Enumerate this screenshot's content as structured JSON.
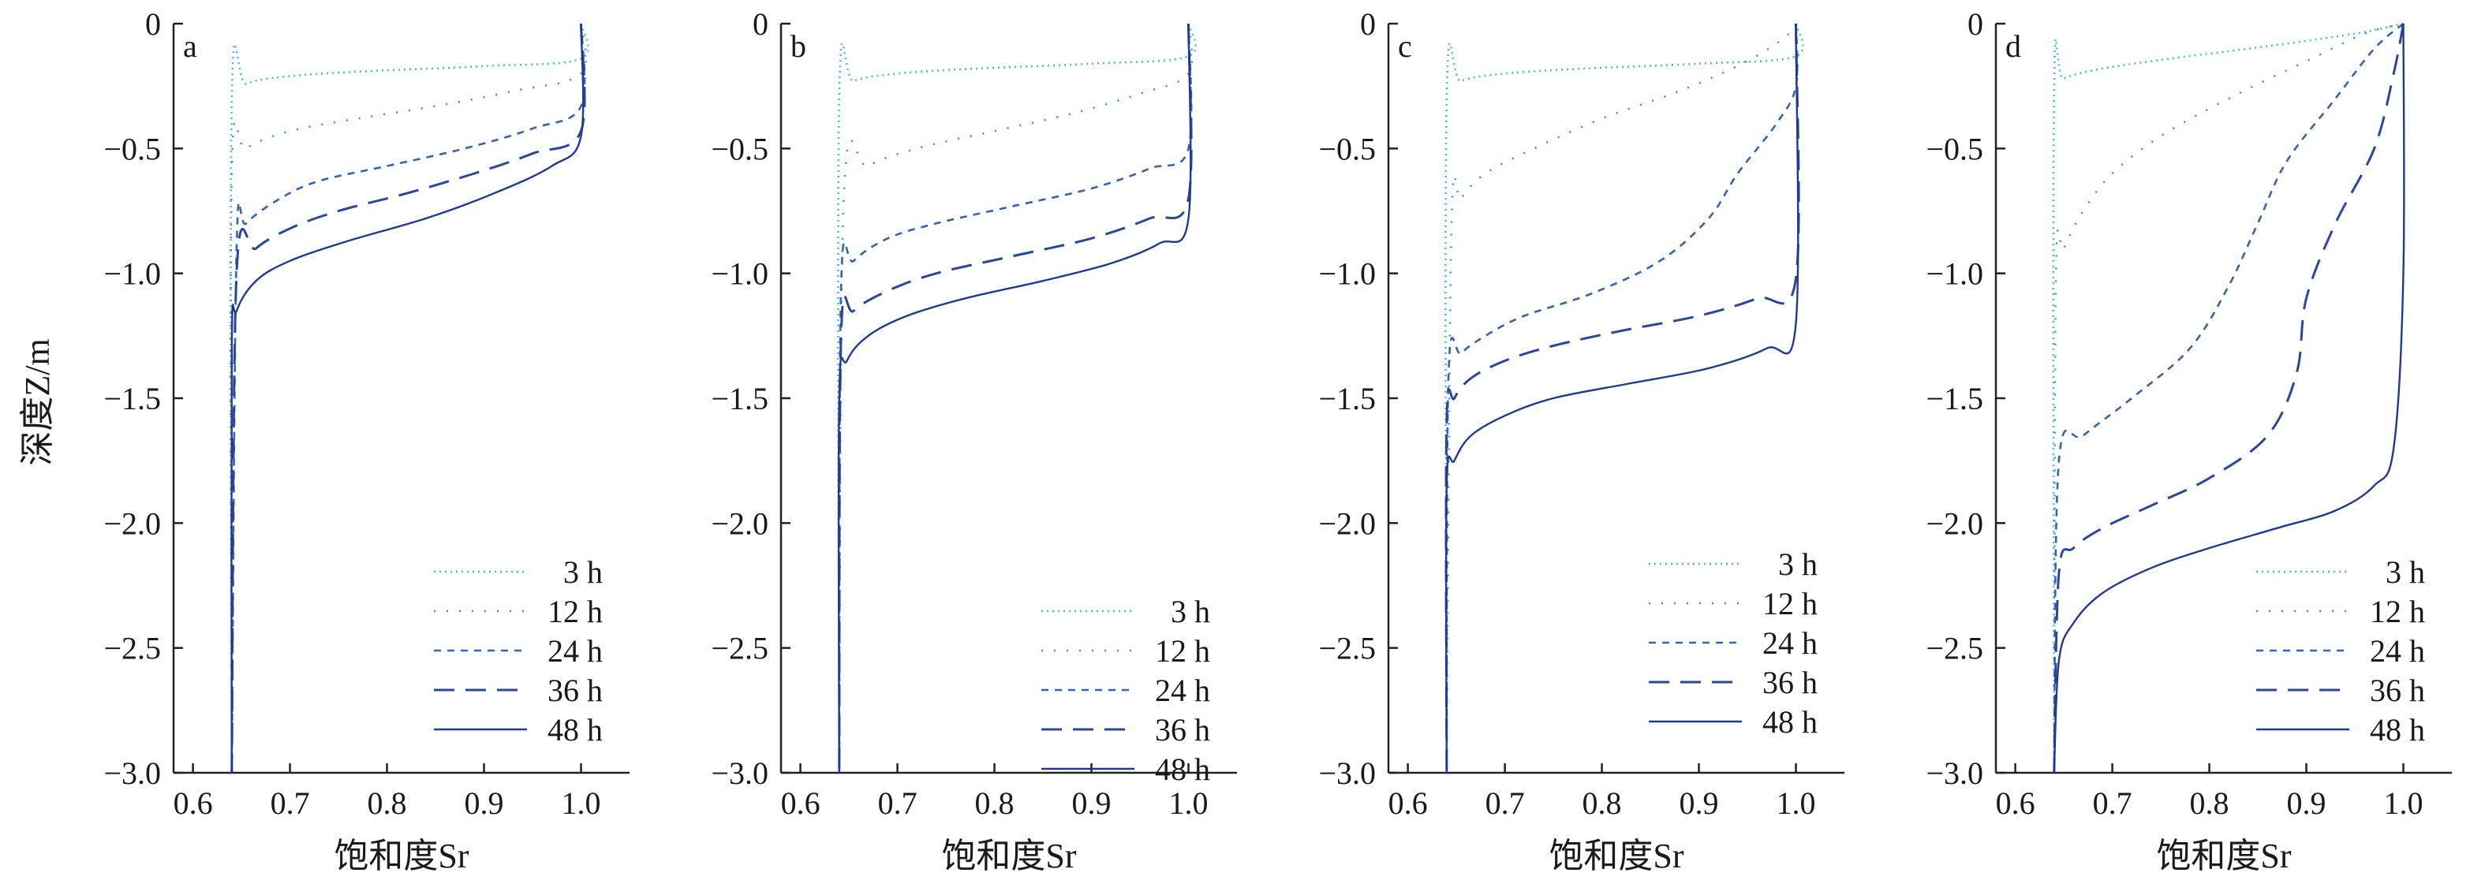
{
  "figure": {
    "ylabel": "深度Z/m",
    "xlabel": "饱和度Sr"
  },
  "chart_data": [
    {
      "type": "line",
      "panel_label": "a",
      "xlabel": "饱和度Sr",
      "ylabel": "深度Z/m",
      "xlim": [
        0.58,
        1.05
      ],
      "ylim": [
        -3.0,
        0
      ],
      "xticks": [
        "0.6",
        "0.7",
        "0.8",
        "0.9",
        "1.0"
      ],
      "yticks": [
        "0",
        "−0.5",
        "−1.0",
        "−1.5",
        "−2.0",
        "−2.5",
        "−3.0"
      ],
      "legend_position": "bottom-right",
      "grid": false,
      "series": [
        {
          "name": "3 h",
          "z": [
            0,
            -0.14,
            -0.17,
            -0.19,
            -0.21,
            -0.24,
            -0.3,
            -3.0
          ],
          "sr": [
            1.0,
            1.0,
            0.9,
            0.78,
            0.7,
            0.655,
            0.64,
            0.64
          ]
        },
        {
          "name": "12 h",
          "z": [
            0,
            -0.2,
            -0.27,
            -0.33,
            -0.38,
            -0.43,
            -0.5,
            -0.6,
            -3.0
          ],
          "sr": [
            1.0,
            1.0,
            0.93,
            0.85,
            0.77,
            0.7,
            0.655,
            0.64,
            0.64
          ]
        },
        {
          "name": "24 h",
          "z": [
            0,
            -0.33,
            -0.42,
            -0.5,
            -0.57,
            -0.63,
            -0.7,
            -0.8,
            -0.9,
            -3.0
          ],
          "sr": [
            1.0,
            1.0,
            0.95,
            0.88,
            0.8,
            0.73,
            0.69,
            0.655,
            0.645,
            0.64
          ]
        },
        {
          "name": "36 h",
          "z": [
            0,
            -0.43,
            -0.52,
            -0.6,
            -0.68,
            -0.75,
            -0.82,
            -0.9,
            -1.0,
            -3.0
          ],
          "sr": [
            1.0,
            1.0,
            0.95,
            0.89,
            0.82,
            0.75,
            0.7,
            0.665,
            0.645,
            0.64
          ]
        },
        {
          "name": "48 h",
          "z": [
            0,
            -0.45,
            -0.57,
            -0.68,
            -0.78,
            -0.87,
            -0.95,
            -1.03,
            -1.15,
            -1.3,
            -3.0
          ],
          "sr": [
            1.0,
            1.0,
            0.97,
            0.91,
            0.84,
            0.76,
            0.7,
            0.665,
            0.645,
            0.64,
            0.64
          ]
        }
      ]
    },
    {
      "type": "line",
      "panel_label": "b",
      "xlabel": "饱和度Sr",
      "xlim": [
        0.58,
        1.05
      ],
      "ylim": [
        -3.0,
        0
      ],
      "xticks": [
        "0.6",
        "0.7",
        "0.8",
        "0.9",
        "1.0"
      ],
      "yticks": [
        "0",
        "−0.5",
        "−1.0",
        "−1.5",
        "−2.0",
        "−2.5",
        "−3.0"
      ],
      "legend_position": "bottom-right",
      "grid": false,
      "series": [
        {
          "name": "3 h",
          "z": [
            0,
            -0.13,
            -0.16,
            -0.18,
            -0.2,
            -0.23,
            -0.3,
            -3.0
          ],
          "sr": [
            1.0,
            1.0,
            0.9,
            0.78,
            0.7,
            0.655,
            0.64,
            0.64
          ]
        },
        {
          "name": "12 h",
          "z": [
            0,
            -0.2,
            -0.28,
            -0.36,
            -0.43,
            -0.5,
            -0.57,
            -0.67,
            -3.0
          ],
          "sr": [
            1.0,
            1.0,
            0.95,
            0.88,
            0.8,
            0.72,
            0.67,
            0.645,
            0.64
          ]
        },
        {
          "name": "24 h",
          "z": [
            0,
            -0.5,
            -0.58,
            -0.66,
            -0.73,
            -0.8,
            -0.86,
            -0.95,
            -1.05,
            -3.0
          ],
          "sr": [
            1.0,
            1.0,
            0.96,
            0.9,
            0.82,
            0.74,
            0.69,
            0.655,
            0.642,
            0.64
          ]
        },
        {
          "name": "36 h",
          "z": [
            0,
            -0.7,
            -0.78,
            -0.86,
            -0.93,
            -1.0,
            -1.07,
            -1.15,
            -1.25,
            -3.0
          ],
          "sr": [
            1.0,
            1.0,
            0.96,
            0.9,
            0.82,
            0.74,
            0.69,
            0.655,
            0.642,
            0.64
          ]
        },
        {
          "name": "48 h",
          "z": [
            0,
            -0.78,
            -0.88,
            -0.96,
            -1.03,
            -1.1,
            -1.17,
            -1.25,
            -1.35,
            -1.5,
            -3.0
          ],
          "sr": [
            1.0,
            1.0,
            0.97,
            0.92,
            0.85,
            0.77,
            0.71,
            0.67,
            0.648,
            0.64,
            0.64
          ]
        }
      ]
    },
    {
      "type": "line",
      "panel_label": "c",
      "xlabel": "饱和度Sr",
      "xlim": [
        0.58,
        1.05
      ],
      "ylim": [
        -3.0,
        0
      ],
      "xticks": [
        "0.6",
        "0.7",
        "0.8",
        "0.9",
        "1.0"
      ],
      "yticks": [
        "0",
        "−0.5",
        "−1.0",
        "−1.5",
        "−2.0",
        "−2.5",
        "−3.0"
      ],
      "legend_position": "bottom-right",
      "grid": false,
      "series": [
        {
          "name": "3 h",
          "z": [
            0,
            -0.13,
            -0.16,
            -0.18,
            -0.2,
            -0.23,
            -0.3,
            -3.0
          ],
          "sr": [
            1.0,
            1.0,
            0.9,
            0.78,
            0.7,
            0.655,
            0.64,
            0.64
          ]
        },
        {
          "name": "12 h",
          "z": [
            0,
            -0.05,
            -0.15,
            -0.27,
            -0.38,
            -0.5,
            -0.6,
            -0.7,
            -0.8,
            -3.0
          ],
          "sr": [
            1.0,
            0.99,
            0.95,
            0.88,
            0.8,
            0.73,
            0.68,
            0.655,
            0.645,
            0.64
          ]
        },
        {
          "name": "24 h",
          "z": [
            0,
            -0.25,
            -0.4,
            -0.6,
            -0.78,
            -0.95,
            -1.08,
            -1.17,
            -1.25,
            -1.32,
            -1.4,
            -3.0
          ],
          "sr": [
            1.0,
            1.0,
            0.98,
            0.94,
            0.91,
            0.86,
            0.79,
            0.72,
            0.68,
            0.655,
            0.642,
            0.64
          ]
        },
        {
          "name": "36 h",
          "z": [
            0,
            -1.02,
            -1.1,
            -1.17,
            -1.23,
            -1.29,
            -1.35,
            -1.42,
            -1.5,
            -1.6,
            -3.0
          ],
          "sr": [
            1.0,
            1.0,
            0.96,
            0.9,
            0.82,
            0.75,
            0.7,
            0.665,
            0.648,
            0.64,
            0.64
          ]
        },
        {
          "name": "48 h",
          "z": [
            0,
            -1.2,
            -1.3,
            -1.38,
            -1.44,
            -1.5,
            -1.57,
            -1.65,
            -1.75,
            -1.85,
            -3.0
          ],
          "sr": [
            1.0,
            1.0,
            0.97,
            0.91,
            0.83,
            0.75,
            0.7,
            0.665,
            0.648,
            0.64,
            0.64
          ]
        }
      ]
    },
    {
      "type": "line",
      "panel_label": "d",
      "xlabel": "饱和度Sr",
      "xlim": [
        0.58,
        1.05
      ],
      "ylim": [
        -3.0,
        0
      ],
      "xticks": [
        "0.6",
        "0.7",
        "0.8",
        "0.9",
        "1.0"
      ],
      "yticks": [
        "0",
        "−0.5",
        "−1.0",
        "−1.5",
        "−2.0",
        "−2.5",
        "−3.0"
      ],
      "legend_position": "bottom-right",
      "grid": false,
      "series": [
        {
          "name": "3 h",
          "z": [
            0,
            -0.04,
            -0.09,
            -0.14,
            -0.18,
            -0.22,
            -0.28,
            -3.0
          ],
          "sr": [
            1.0,
            0.95,
            0.86,
            0.76,
            0.69,
            0.65,
            0.64,
            0.64
          ]
        },
        {
          "name": "12 h",
          "z": [
            0,
            -0.04,
            -0.15,
            -0.3,
            -0.45,
            -0.6,
            -0.75,
            -0.9,
            -1.0,
            -3.0
          ],
          "sr": [
            1.0,
            0.96,
            0.9,
            0.82,
            0.75,
            0.7,
            0.67,
            0.65,
            0.642,
            0.64
          ]
        },
        {
          "name": "24 h",
          "z": [
            0,
            -0.1,
            -0.3,
            -0.55,
            -0.8,
            -1.05,
            -1.3,
            -1.5,
            -1.65,
            -1.75,
            -3.0
          ],
          "sr": [
            1.0,
            0.97,
            0.93,
            0.88,
            0.85,
            0.82,
            0.78,
            0.72,
            0.67,
            0.645,
            0.64
          ]
        },
        {
          "name": "36 h",
          "z": [
            0,
            -0.2,
            -0.5,
            -0.8,
            -1.1,
            -1.4,
            -1.65,
            -1.82,
            -1.93,
            -2.02,
            -2.1,
            -2.2,
            -3.0
          ],
          "sr": [
            1.0,
            0.99,
            0.97,
            0.93,
            0.9,
            0.89,
            0.86,
            0.8,
            0.74,
            0.69,
            0.66,
            0.645,
            0.64
          ]
        },
        {
          "name": "48 h",
          "z": [
            0,
            -1.0,
            -1.7,
            -1.85,
            -1.95,
            -2.02,
            -2.1,
            -2.18,
            -2.28,
            -2.4,
            -2.55,
            -3.0
          ],
          "sr": [
            1.0,
            1.0,
            0.99,
            0.97,
            0.93,
            0.87,
            0.8,
            0.74,
            0.69,
            0.66,
            0.645,
            0.64
          ]
        }
      ]
    }
  ],
  "series_styles": [
    {
      "color": "#4fb8d6",
      "dash": "2 5",
      "width": 2.6
    },
    {
      "color": "#3f8fc4",
      "dash": "2 14",
      "width": 2.6
    },
    {
      "color": "#3563ae",
      "dash": "9 8",
      "width": 2.6
    },
    {
      "color": "#2a479a",
      "dash": "26 14",
      "width": 3
    },
    {
      "color": "#223a8e",
      "dash": "",
      "width": 2.4
    }
  ]
}
